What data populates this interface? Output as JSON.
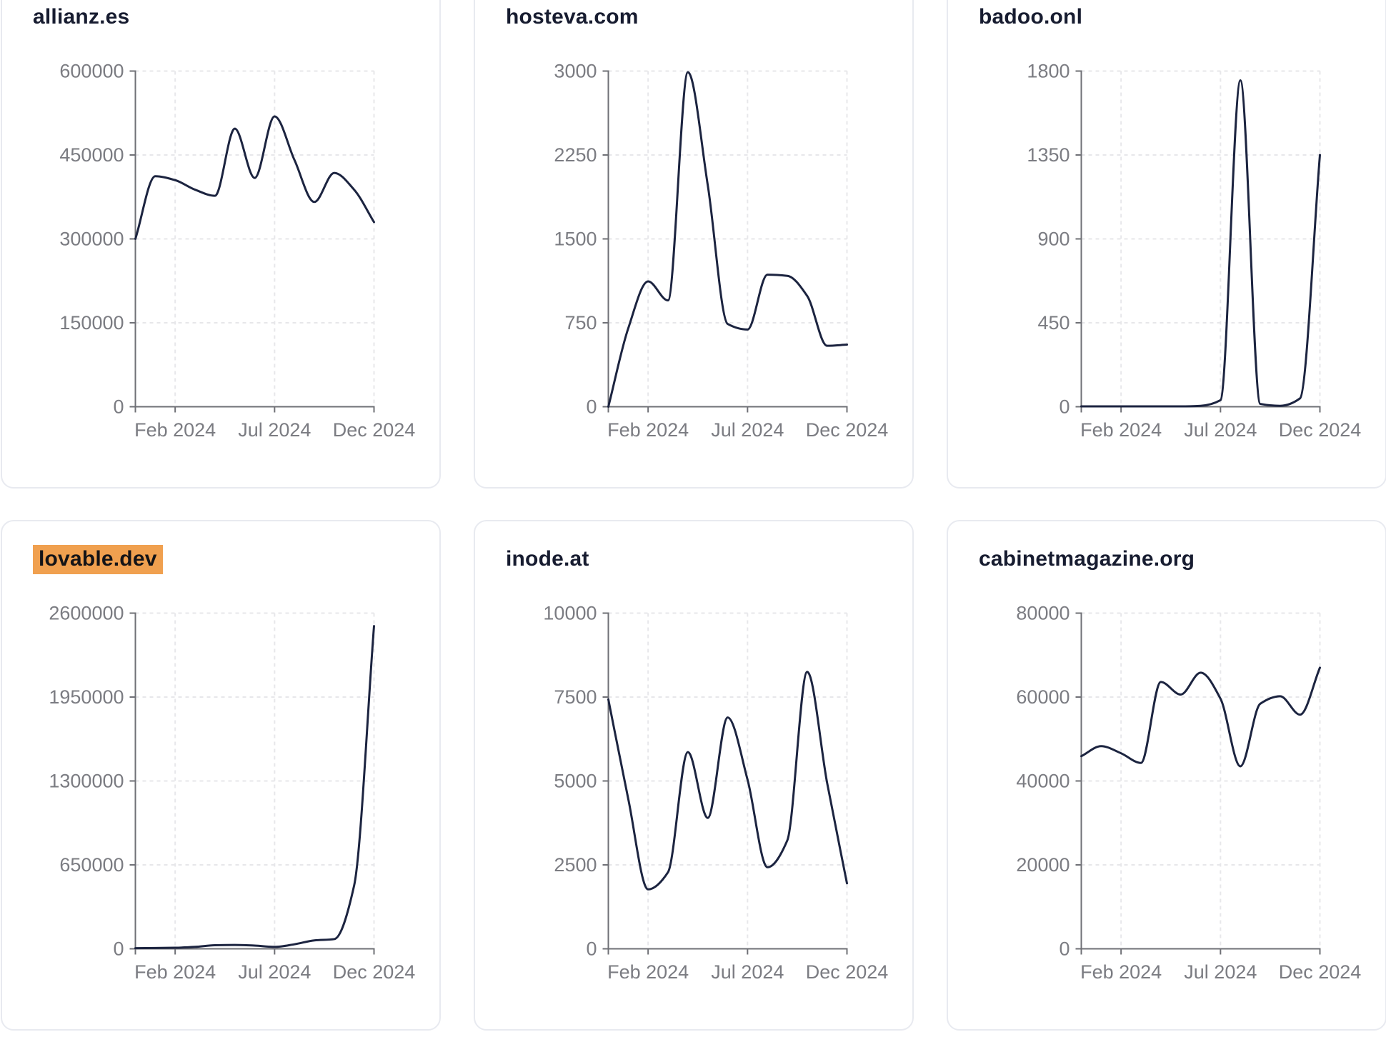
{
  "page": {
    "title": "domain traffic charts"
  },
  "styles": {
    "line_color": "#1c2440",
    "axis_color": "#6f7076",
    "tick_label_color": "#7b7c82",
    "grid_color": "#e7e7ea",
    "card_border_color": "#e8eaf0",
    "highlight_color": "#f0a04f",
    "title_color": "#171c30"
  },
  "chart_data": [
    {
      "type": "line",
      "title": "allianz.es",
      "highlighted": false,
      "x": [
        "Dec 2023",
        "Jan 2024",
        "Feb 2024",
        "Mar 2024",
        "Apr 2024",
        "May 2024",
        "Jun 2024",
        "Jul 2024",
        "Aug 2024",
        "Sep 2024",
        "Oct 2024",
        "Nov 2024",
        "Dec 2024"
      ],
      "values": [
        300000,
        412000,
        405000,
        388000,
        377000,
        497000,
        409000,
        519000,
        441000,
        366000,
        418000,
        388000,
        330000
      ],
      "y_ticks": [
        0,
        150000,
        300000,
        450000,
        600000
      ],
      "ylim": [
        0,
        600000
      ],
      "x_tick_labels": [
        "Feb 2024",
        "Jul 2024",
        "Dec 2024"
      ],
      "x_tick_indices": [
        2,
        7,
        12
      ],
      "grid": "dashed",
      "legend": "none"
    },
    {
      "type": "line",
      "title": "hosteva.com",
      "highlighted": false,
      "x": [
        "Dec 2023",
        "Jan 2024",
        "Feb 2024",
        "Mar 2024",
        "Apr 2024",
        "May 2024",
        "Jun 2024",
        "Jul 2024",
        "Aug 2024",
        "Sep 2024",
        "Oct 2024",
        "Nov 2024",
        "Dec 2024"
      ],
      "values": [
        0,
        700,
        1120,
        950,
        2990,
        1980,
        740,
        690,
        1180,
        1170,
        990,
        545,
        555
      ],
      "y_ticks": [
        0,
        750,
        1500,
        2250,
        3000
      ],
      "ylim": [
        0,
        3000
      ],
      "x_tick_labels": [
        "Feb 2024",
        "Jul 2024",
        "Dec 2024"
      ],
      "x_tick_indices": [
        2,
        7,
        12
      ],
      "grid": "dashed",
      "legend": "none"
    },
    {
      "type": "line",
      "title": "badoo.onl",
      "highlighted": false,
      "x": [
        "Dec 2023",
        "Jan 2024",
        "Feb 2024",
        "Mar 2024",
        "Apr 2024",
        "May 2024",
        "Jun 2024",
        "Jul 2024",
        "Aug 2024",
        "Sep 2024",
        "Oct 2024",
        "Nov 2024",
        "Dec 2024"
      ],
      "values": [
        2,
        2,
        2,
        2,
        2,
        2,
        5,
        35,
        1750,
        15,
        5,
        45,
        1350
      ],
      "y_ticks": [
        0,
        450,
        900,
        1350,
        1800
      ],
      "ylim": [
        0,
        1800
      ],
      "x_tick_labels": [
        "Feb 2024",
        "Jul 2024",
        "Dec 2024"
      ],
      "x_tick_indices": [
        2,
        7,
        12
      ],
      "grid": "dashed",
      "legend": "none"
    },
    {
      "type": "line",
      "title": "lovable.dev",
      "highlighted": true,
      "x": [
        "Dec 2023",
        "Jan 2024",
        "Feb 2024",
        "Mar 2024",
        "Apr 2024",
        "May 2024",
        "Jun 2024",
        "Jul 2024",
        "Aug 2024",
        "Sep 2024",
        "Oct 2024",
        "Nov 2024",
        "Dec 2024"
      ],
      "values": [
        5000,
        6000,
        8000,
        15000,
        28000,
        30000,
        25000,
        15000,
        35000,
        65000,
        75000,
        490000,
        2500000
      ],
      "y_ticks": [
        0,
        650000,
        1300000,
        1950000,
        2600000
      ],
      "ylim": [
        0,
        2600000
      ],
      "x_tick_labels": [
        "Feb 2024",
        "Jul 2024",
        "Dec 2024"
      ],
      "x_tick_indices": [
        2,
        7,
        12
      ],
      "grid": "dashed",
      "legend": "none"
    },
    {
      "type": "line",
      "title": "inode.at",
      "highlighted": false,
      "x": [
        "Dec 2023",
        "Jan 2024",
        "Feb 2024",
        "Mar 2024",
        "Apr 2024",
        "May 2024",
        "Jun 2024",
        "Jul 2024",
        "Aug 2024",
        "Sep 2024",
        "Oct 2024",
        "Nov 2024",
        "Dec 2024"
      ],
      "values": [
        7430,
        4470,
        1770,
        2280,
        5860,
        3900,
        6890,
        5040,
        2430,
        3230,
        8250,
        4950,
        1950
      ],
      "y_ticks": [
        0,
        2500,
        5000,
        7500,
        10000
      ],
      "ylim": [
        0,
        10000
      ],
      "x_tick_labels": [
        "Feb 2024",
        "Jul 2024",
        "Dec 2024"
      ],
      "x_tick_indices": [
        2,
        7,
        12
      ],
      "grid": "dashed",
      "legend": "none"
    },
    {
      "type": "line",
      "title": "cabinetmagazine.org",
      "highlighted": false,
      "x": [
        "Dec 2023",
        "Jan 2024",
        "Feb 2024",
        "Mar 2024",
        "Apr 2024",
        "May 2024",
        "Jun 2024",
        "Jul 2024",
        "Aug 2024",
        "Sep 2024",
        "Oct 2024",
        "Nov 2024",
        "Dec 2024"
      ],
      "values": [
        45900,
        48300,
        46600,
        44300,
        63600,
        60600,
        65800,
        59600,
        43500,
        58400,
        60200,
        55800,
        67000
      ],
      "y_ticks": [
        0,
        20000,
        40000,
        60000,
        80000
      ],
      "ylim": [
        0,
        80000
      ],
      "x_tick_labels": [
        "Feb 2024",
        "Jul 2024",
        "Dec 2024"
      ],
      "x_tick_indices": [
        2,
        7,
        12
      ],
      "grid": "dashed",
      "legend": "none"
    }
  ]
}
